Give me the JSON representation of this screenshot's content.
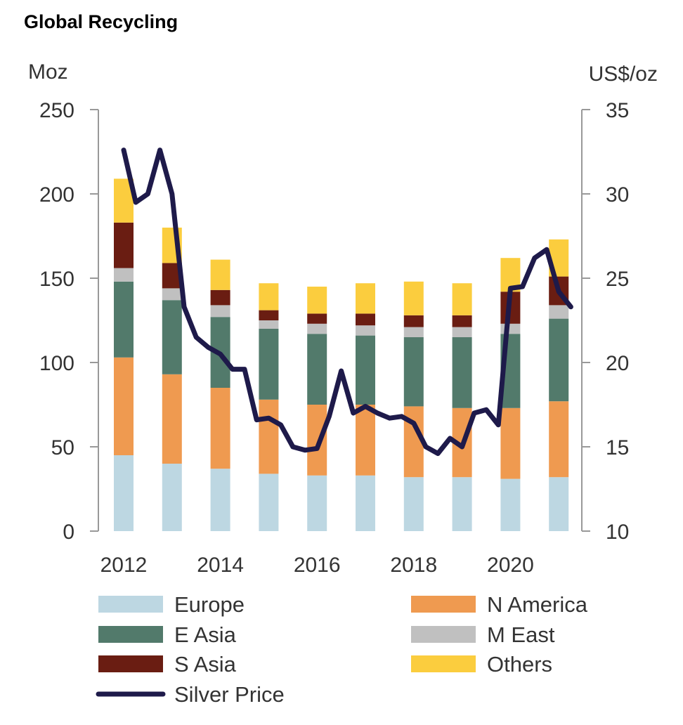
{
  "chart_data": {
    "type": "bar",
    "title": "Global Recycling",
    "ylabel_left": "Moz",
    "ylabel_right": "US$/oz",
    "ylim_left": [
      0,
      250
    ],
    "ylim_right": [
      10,
      35
    ],
    "yticks_left": [
      "0",
      "50",
      "100",
      "150",
      "200",
      "250"
    ],
    "yticks_right": [
      "10",
      "15",
      "20",
      "25",
      "30",
      "35"
    ],
    "xtick_labels": [
      "2012",
      "2014",
      "2016",
      "2018",
      "2020"
    ],
    "categories": [
      "2012",
      "2013",
      "2014",
      "2015",
      "2016",
      "2017",
      "2018",
      "2019",
      "2020",
      "2021"
    ],
    "series": [
      {
        "name": "Europe",
        "color": "#bdd7e2",
        "values": [
          45,
          40,
          37,
          34,
          33,
          33,
          32,
          32,
          31,
          32
        ]
      },
      {
        "name": "N America",
        "color": "#ef9a50",
        "values": [
          58,
          53,
          48,
          44,
          42,
          42,
          42,
          41,
          42,
          45
        ]
      },
      {
        "name": "E Asia",
        "color": "#527a6b",
        "values": [
          45,
          44,
          42,
          42,
          42,
          41,
          41,
          42,
          44,
          49
        ]
      },
      {
        "name": "M East",
        "color": "#c0c0c0",
        "values": [
          8,
          7,
          7,
          5,
          6,
          6,
          6,
          6,
          6,
          8
        ]
      },
      {
        "name": "S Asia",
        "color": "#6a1d12",
        "values": [
          27,
          15,
          9,
          6,
          6,
          7,
          7,
          7,
          19,
          17
        ]
      },
      {
        "name": "Others",
        "color": "#fbcd3e",
        "values": [
          26,
          21,
          18,
          16,
          16,
          18,
          20,
          19,
          20,
          22
        ]
      }
    ],
    "line_series": {
      "name": "Silver Price",
      "color": "#1e1a4a",
      "axis": "right",
      "x": [
        2012.0,
        2012.25,
        2012.5,
        2012.75,
        2013.0,
        2013.25,
        2013.5,
        2013.75,
        2014.0,
        2014.25,
        2014.5,
        2014.75,
        2015.0,
        2015.25,
        2015.5,
        2015.75,
        2016.0,
        2016.25,
        2016.5,
        2016.75,
        2017.0,
        2017.25,
        2017.5,
        2017.75,
        2018.0,
        2018.25,
        2018.5,
        2018.75,
        2019.0,
        2019.25,
        2019.5,
        2019.75,
        2020.0,
        2020.25,
        2020.5,
        2020.75,
        2021.0,
        2021.25
      ],
      "values": [
        32.6,
        29.5,
        30.0,
        32.6,
        30.0,
        23.3,
        21.5,
        20.9,
        20.5,
        19.6,
        19.6,
        16.6,
        16.7,
        16.3,
        15.0,
        14.8,
        14.9,
        16.8,
        19.5,
        17.0,
        17.4,
        17.0,
        16.7,
        16.8,
        16.4,
        15.0,
        14.6,
        15.5,
        15.0,
        17.0,
        17.2,
        16.3,
        24.4,
        24.5,
        26.2,
        26.7,
        24.2,
        23.3
      ]
    },
    "legend": {
      "placement": "bottom",
      "items": [
        "Europe",
        "N America",
        "E Asia",
        "M East",
        "S Asia",
        "Others",
        "Silver Price"
      ]
    },
    "grid": false
  }
}
